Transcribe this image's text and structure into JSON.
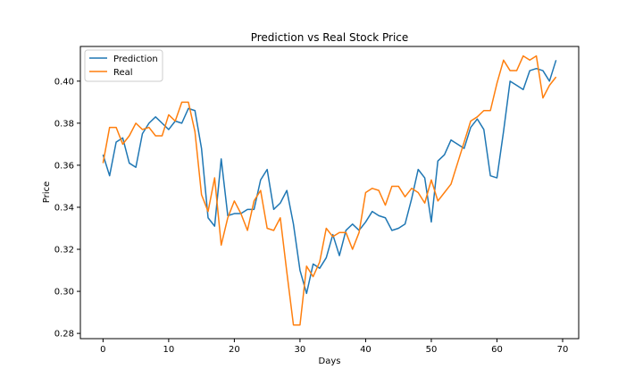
{
  "chart_data": {
    "type": "line",
    "title": "Prediction vs Real Stock Price",
    "xlabel": "Days",
    "ylabel": "Price",
    "xlim": [
      -3.45,
      72.45
    ],
    "ylim": [
      0.2775,
      0.4165
    ],
    "xticks": [
      0,
      10,
      20,
      30,
      40,
      50,
      60,
      70
    ],
    "yticks": [
      0.28,
      0.3,
      0.32,
      0.34,
      0.36,
      0.38,
      0.4
    ],
    "ytick_labels": [
      "0.28",
      "0.30",
      "0.32",
      "0.34",
      "0.36",
      "0.38",
      "0.40"
    ],
    "grid": false,
    "legend": "upper left",
    "x": [
      0,
      1,
      2,
      3,
      4,
      5,
      6,
      7,
      8,
      9,
      10,
      11,
      12,
      13,
      14,
      15,
      16,
      17,
      18,
      19,
      20,
      21,
      22,
      23,
      24,
      25,
      26,
      27,
      28,
      29,
      30,
      31,
      32,
      33,
      34,
      35,
      36,
      37,
      38,
      39,
      40,
      41,
      42,
      43,
      44,
      45,
      46,
      47,
      48,
      49,
      50,
      51,
      52,
      53,
      54,
      55,
      56,
      57,
      58,
      59,
      60,
      61,
      62,
      63,
      64,
      65,
      66,
      67,
      68,
      69
    ],
    "series": [
      {
        "name": "Prediction",
        "color": "#1f77b4",
        "values": [
          0.365,
          0.355,
          0.371,
          0.373,
          0.361,
          0.359,
          0.375,
          0.38,
          0.383,
          0.38,
          0.377,
          0.381,
          0.38,
          0.387,
          0.386,
          0.368,
          0.335,
          0.331,
          0.363,
          0.336,
          0.337,
          0.337,
          0.339,
          0.339,
          0.353,
          0.358,
          0.339,
          0.342,
          0.348,
          0.332,
          0.31,
          0.299,
          0.313,
          0.311,
          0.316,
          0.327,
          0.317,
          0.329,
          0.332,
          0.329,
          0.333,
          0.338,
          0.336,
          0.335,
          0.329,
          0.33,
          0.332,
          0.344,
          0.358,
          0.354,
          0.333,
          0.362,
          0.365,
          0.372,
          0.37,
          0.368,
          0.378,
          0.382,
          0.377,
          0.355,
          0.354,
          0.376,
          0.4,
          0.398,
          0.396,
          0.405,
          0.406,
          0.405,
          0.4,
          0.41
        ]
      },
      {
        "name": "Real",
        "color": "#ff7f0e",
        "values": [
          0.361,
          0.378,
          0.378,
          0.37,
          0.374,
          0.38,
          0.377,
          0.378,
          0.374,
          0.374,
          0.384,
          0.381,
          0.39,
          0.39,
          0.376,
          0.346,
          0.338,
          0.354,
          0.322,
          0.335,
          0.343,
          0.337,
          0.329,
          0.343,
          0.348,
          0.33,
          0.329,
          0.335,
          0.309,
          0.284,
          0.284,
          0.312,
          0.307,
          0.314,
          0.33,
          0.326,
          0.328,
          0.328,
          0.32,
          0.328,
          0.347,
          0.349,
          0.348,
          0.341,
          0.35,
          0.35,
          0.345,
          0.349,
          0.347,
          0.342,
          0.353,
          0.343,
          0.347,
          0.351,
          0.361,
          0.371,
          0.381,
          0.383,
          0.386,
          0.386,
          0.399,
          0.41,
          0.405,
          0.405,
          0.412,
          0.41,
          0.412,
          0.392,
          0.398,
          0.402
        ]
      }
    ]
  }
}
